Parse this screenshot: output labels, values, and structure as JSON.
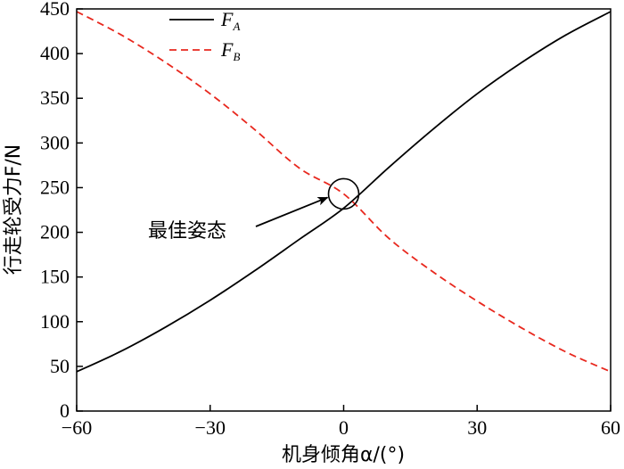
{
  "chart_data": {
    "type": "line",
    "title": "",
    "xlabel": "机身倾角α/(°)",
    "ylabel": "行走轮受力F/N",
    "xlim": [
      -60,
      60
    ],
    "ylim": [
      0,
      450
    ],
    "xticks": [
      -60,
      -30,
      0,
      30,
      60
    ],
    "xtick_labels": [
      "−60",
      "−30",
      "0",
      "30",
      "60"
    ],
    "yticks": [
      0,
      50,
      100,
      150,
      200,
      250,
      300,
      350,
      400,
      450
    ],
    "ytick_labels": [
      "0",
      "50",
      "100",
      "150",
      "200",
      "250",
      "300",
      "350",
      "400",
      "450"
    ],
    "grid": false,
    "legend_position": "top-left",
    "series": [
      {
        "name": "F",
        "subscript": "A",
        "color": "#000000",
        "style": "solid",
        "x": [
          -60,
          -50,
          -40,
          -30,
          -20,
          -10,
          0,
          10,
          20,
          30,
          40,
          50,
          60
        ],
        "y": [
          44,
          67,
          94,
          124,
          157,
          192,
          227,
          272,
          315,
          355,
          390,
          421,
          447
        ]
      },
      {
        "name": "F",
        "subscript": "B",
        "color": "#e8281e",
        "style": "dashed",
        "x": [
          -60,
          -50,
          -40,
          -30,
          -20,
          -10,
          0,
          10,
          20,
          30,
          40,
          50,
          60
        ],
        "y": [
          447,
          421,
          390,
          355,
          315,
          272,
          243,
          194,
          156,
          123,
          93,
          66,
          44
        ]
      }
    ],
    "annotation": {
      "text": "最佳姿态",
      "target_x": 0,
      "target_y": 243
    }
  }
}
